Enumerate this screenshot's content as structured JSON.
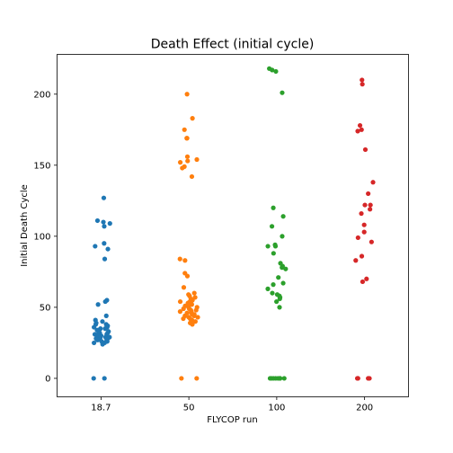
{
  "chart_data": {
    "type": "scatter",
    "title": "Death Effect (initial cycle)",
    "xlabel": "FLYCOP run",
    "ylabel": "Initial Death Cycle",
    "categories": [
      "18.7",
      "50",
      "100",
      "200"
    ],
    "ylim": [
      -13,
      228
    ],
    "yticks": [
      0,
      50,
      100,
      150,
      200
    ],
    "grid": false,
    "series": [
      {
        "category": "18.7",
        "color": "#1f77b4",
        "values": [
          127,
          111,
          110,
          109,
          107,
          95,
          93,
          91,
          84,
          55,
          54,
          52,
          44,
          41,
          40,
          39,
          38,
          38,
          37,
          36,
          36,
          35,
          35,
          34,
          34,
          33,
          33,
          32,
          32,
          32,
          31,
          31,
          31,
          30,
          30,
          30,
          29,
          29,
          29,
          28,
          28,
          28,
          27,
          27,
          26,
          26,
          25,
          25,
          24,
          0,
          0
        ]
      },
      {
        "category": "50",
        "color": "#ff7f0e",
        "values": [
          200,
          183,
          175,
          169,
          169,
          156,
          154,
          153,
          152,
          149,
          148,
          142,
          84,
          83,
          74,
          72,
          64,
          60,
          59,
          58,
          57,
          56,
          55,
          54,
          54,
          53,
          52,
          52,
          51,
          50,
          50,
          49,
          49,
          48,
          48,
          47,
          47,
          46,
          46,
          45,
          45,
          44,
          44,
          43,
          43,
          42,
          42,
          41,
          40,
          39,
          38,
          0,
          0
        ]
      },
      {
        "category": "100",
        "color": "#2ca02c",
        "values": [
          218,
          217,
          216,
          201,
          120,
          114,
          107,
          100,
          94,
          93,
          93,
          88,
          81,
          79,
          78,
          77,
          71,
          67,
          66,
          63,
          60,
          59,
          58,
          57,
          56,
          54,
          50,
          0,
          0,
          0,
          0,
          0,
          0,
          0,
          0,
          0
        ]
      },
      {
        "category": "200",
        "color": "#d62728",
        "values": [
          210,
          207,
          178,
          175,
          174,
          161,
          138,
          130,
          122,
          122,
          119,
          116,
          108,
          103,
          99,
          96,
          86,
          83,
          70,
          68,
          0,
          0,
          0,
          0,
          0,
          0,
          0
        ]
      }
    ]
  }
}
